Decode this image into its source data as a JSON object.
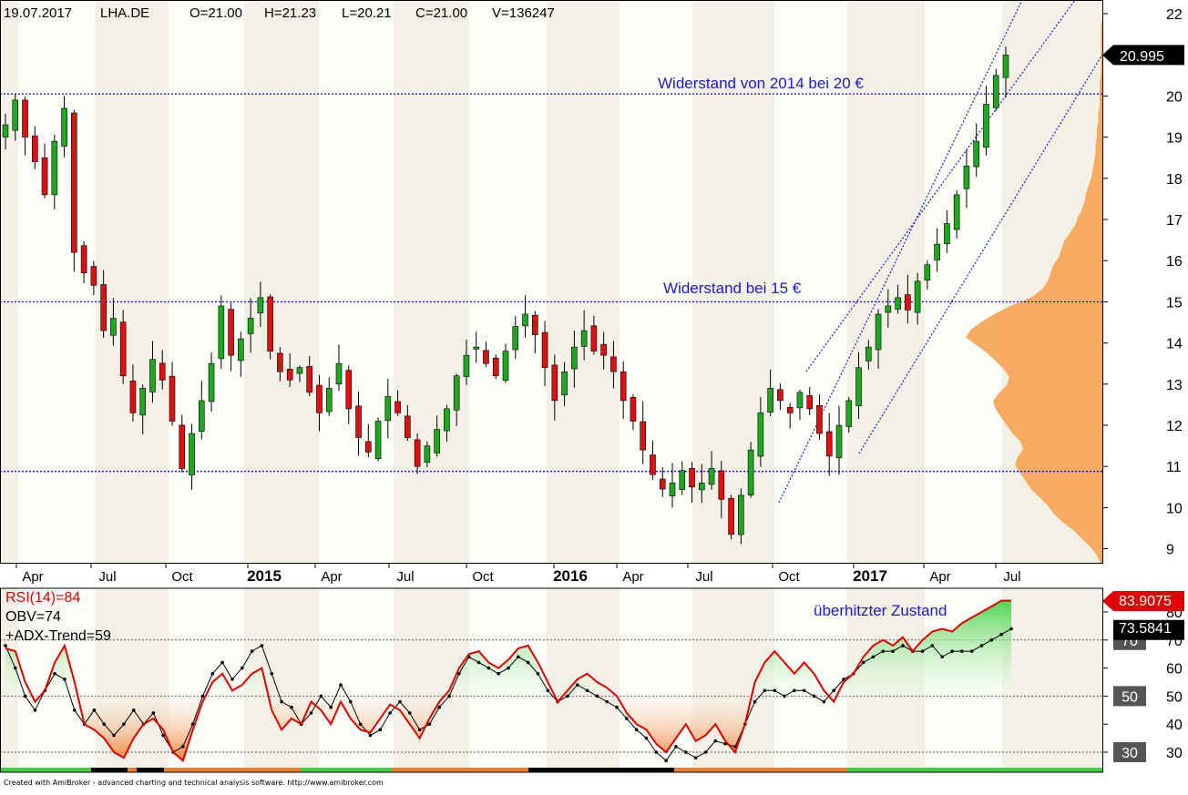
{
  "header": {
    "date": "19.07.2017",
    "symbol": "LHA.DE",
    "open": "O=21.00",
    "high": "H=21.23",
    "low": "L=20.21",
    "close": "C=21.00",
    "volume": "V=136247"
  },
  "chart_data": [
    {
      "type": "candlestick",
      "title": "",
      "y_ticks": [
        9,
        10,
        11,
        12,
        13,
        14,
        15,
        16,
        17,
        18,
        19,
        20,
        21,
        22
      ],
      "ylim": [
        8.6,
        22.3
      ],
      "x_tick_labels": [
        "Apr",
        "Jul",
        "Oct",
        "2015",
        "Apr",
        "Jul",
        "Oct",
        "2016",
        "Apr",
        "Jul",
        "Oct",
        "2017",
        "Apr",
        "Jul"
      ],
      "horizontal_levels": [
        20.05,
        15.0,
        10.88
      ],
      "annotations": [
        "Widerstand von 2014 bei 20 €",
        "Widerstand bei 15 €"
      ],
      "last_price_label": "20.995",
      "price_path": [
        19.3,
        19.9,
        19.0,
        18.4,
        17.6,
        18.9,
        19.7,
        16.2,
        15.7,
        15.4,
        14.3,
        14.6,
        13.2,
        12.3,
        12.9,
        13.6,
        13.1,
        12.1,
        10.95,
        11.8,
        12.6,
        13.5,
        14.9,
        13.7,
        14.1,
        14.6,
        15.1,
        13.8,
        13.3,
        13.1,
        13.4,
        12.8,
        12.3,
        12.9,
        13.5,
        12.4,
        11.7,
        11.35,
        12.1,
        12.7,
        12.3,
        11.7,
        11.0,
        11.5,
        11.9,
        12.4,
        13.2,
        13.7,
        13.9,
        13.5,
        13.2,
        13.8,
        14.4,
        14.7,
        14.2,
        13.4,
        12.6,
        13.3,
        13.9,
        14.3,
        13.8,
        13.7,
        13.3,
        12.6,
        12.1,
        11.4,
        10.8,
        10.45,
        10.6,
        10.9,
        10.5,
        10.6,
        10.95,
        10.2,
        9.35,
        10.3,
        11.4,
        12.3,
        12.9,
        12.6,
        12.3,
        12.8,
        12.4,
        11.8,
        11.25,
        12.0,
        12.6,
        13.4,
        13.9,
        14.7,
        14.9,
        15.1,
        14.8,
        15.5,
        15.9,
        16.4,
        16.9,
        17.6,
        18.3,
        18.9,
        19.8,
        20.5,
        20.995
      ],
      "volume_profile": [
        0.02,
        0.05,
        0.1,
        0.16,
        0.22,
        0.3,
        0.36,
        0.4,
        0.46,
        0.52,
        0.56,
        0.6,
        0.64,
        0.62,
        0.58,
        0.6,
        0.66,
        0.7,
        0.74,
        0.78,
        0.8,
        0.76,
        0.7,
        0.68,
        0.72,
        0.78,
        0.84,
        0.92,
        1.0,
        0.96,
        0.88,
        0.78,
        0.66,
        0.52,
        0.44,
        0.4,
        0.38,
        0.36,
        0.32,
        0.3,
        0.28,
        0.24,
        0.2,
        0.18,
        0.15,
        0.13,
        0.12,
        0.1,
        0.08,
        0.07,
        0.06,
        0.05,
        0.05,
        0.04,
        0.04,
        0.03,
        0.03,
        0.02,
        0.02,
        0.02,
        0.02,
        0.01,
        0.01,
        0.01,
        0.01,
        0.01,
        0.01,
        0.01,
        0.0,
        0.0
      ]
    },
    {
      "type": "line",
      "series": [
        {
          "name": "RSI(14)=84",
          "color": "#e00000"
        },
        {
          "name": "OBV=74",
          "color": "#000000"
        },
        {
          "name": "+ADX-Trend=59",
          "color": "#000000"
        }
      ],
      "y_ticks": [
        30,
        40,
        50,
        60,
        70,
        80
      ],
      "ylim": [
        25,
        85
      ],
      "boxed_levels": [
        "70",
        "50",
        "30"
      ],
      "annotation": "überhitzter Zustand",
      "last_rsi_label": "83.9075",
      "last_obv_label": "73.5841",
      "rsi": [
        67,
        66,
        55,
        48,
        52,
        62,
        68,
        55,
        40,
        38,
        35,
        30,
        28,
        35,
        40,
        42,
        38,
        30,
        27,
        38,
        48,
        55,
        58,
        52,
        54,
        58,
        60,
        45,
        38,
        42,
        40,
        48,
        45,
        40,
        48,
        42,
        38,
        37,
        42,
        47,
        45,
        40,
        35,
        42,
        48,
        52,
        60,
        65,
        66,
        62,
        60,
        63,
        67,
        68,
        62,
        55,
        48,
        52,
        56,
        58,
        55,
        53,
        50,
        44,
        40,
        38,
        33,
        30,
        35,
        40,
        34,
        36,
        40,
        34,
        30,
        40,
        55,
        62,
        66,
        62,
        58,
        62,
        58,
        52,
        48,
        55,
        58,
        64,
        68,
        70,
        68,
        71,
        66,
        70,
        73,
        74,
        73,
        76,
        78,
        80,
        82,
        84,
        84
      ],
      "obv": [
        68,
        60,
        50,
        45,
        52,
        58,
        56,
        45,
        40,
        45,
        40,
        36,
        40,
        45,
        40,
        44,
        36,
        30,
        32,
        40,
        50,
        58,
        62,
        56,
        60,
        66,
        68,
        58,
        48,
        46,
        40,
        44,
        50,
        46,
        54,
        48,
        40,
        36,
        38,
        44,
        48,
        44,
        38,
        40,
        46,
        50,
        58,
        64,
        62,
        60,
        58,
        60,
        64,
        62,
        58,
        52,
        48,
        50,
        54,
        52,
        50,
        48,
        46,
        42,
        38,
        35,
        30,
        27,
        32,
        30,
        28,
        30,
        34,
        33,
        32,
        40,
        48,
        52,
        52,
        50,
        52,
        52,
        50,
        48,
        52,
        56,
        58,
        62,
        64,
        66,
        66,
        68,
        66,
        66,
        68,
        64,
        66,
        66,
        66,
        68,
        70,
        72,
        74
      ]
    }
  ],
  "footer": "Created with AmiBroker - advanced charting and technical analysis software. http://www.amibroker.com"
}
